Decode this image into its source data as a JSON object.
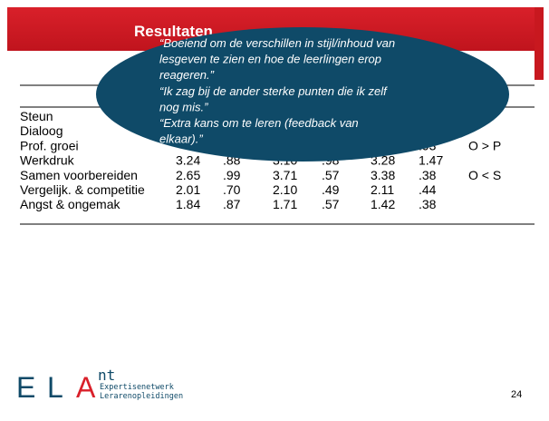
{
  "slide": {
    "title": "Resultaten",
    "table": {
      "rows": [
        {
          "label": "Steun",
          "cells": [
            null,
            null,
            null,
            null,
            null,
            null,
            null
          ]
        },
        {
          "label": "Dialoog",
          "cells": [
            null,
            null,
            null,
            null,
            null,
            null,
            null
          ]
        },
        {
          "label": "Prof. groei",
          "cells": [
            null,
            null,
            null,
            null,
            "2.63",
            ".93",
            "O > P"
          ]
        },
        {
          "label": "Werkdruk",
          "cells": [
            "3.24",
            ".88",
            "3.10",
            ".98",
            "3.28",
            "1.47",
            null
          ]
        },
        {
          "label": "Samen voorbereiden",
          "cells": [
            "2.65",
            ".99",
            "3.71",
            ".57",
            "3.38",
            ".38",
            "O < S"
          ]
        },
        {
          "label": "Vergelijk. & competitie",
          "cells": [
            "2.01",
            ".70",
            "2.10",
            ".49",
            "2.11",
            ".44",
            null
          ]
        },
        {
          "label": "Angst & ongemak",
          "cells": [
            "1.84",
            ".87",
            "1.71",
            ".57",
            "1.42",
            ".38",
            null
          ]
        }
      ]
    },
    "quote": {
      "lines": [
        "“Boeiend om de verschillen in stijl/inhoud van",
        "lesgeven te zien en hoe de leerlingen erop",
        "reageren.”",
        "“Ik zag bij de ander sterke punten die ik zelf",
        "nog mis.”",
        "“Extra kans om te leren (feedback van",
        "elkaar).”"
      ]
    },
    "footer": {
      "logo_letters": [
        "E",
        "L",
        "A"
      ],
      "logo_sup": "nt",
      "logo_line1": "Expertisenetwerk",
      "logo_line2": "Lerarenopleidingen",
      "page": "24"
    }
  }
}
